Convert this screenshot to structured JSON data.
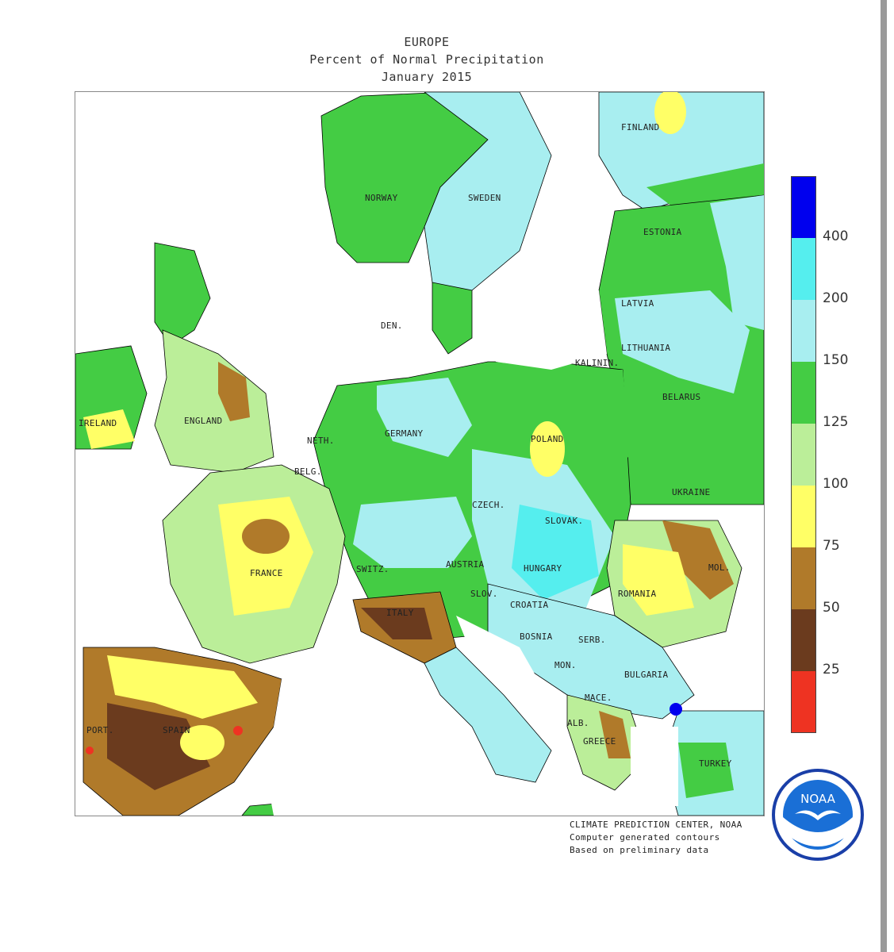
{
  "title": {
    "line1": "EUROPE",
    "line2": "Percent of Normal Precipitation",
    "line3": "January 2015"
  },
  "labels": {
    "finland": "FINLAND",
    "norway": "NORWAY",
    "sweden": "SWEDEN",
    "estonia": "ESTONIA",
    "latvia": "LATVIA",
    "lithuania": "LITHUANIA",
    "kalinin": "KALININ.",
    "belarus": "BELARUS",
    "den": "DEN.",
    "ireland": "IRELAND",
    "england": "ENGLAND",
    "neth": "NETH.",
    "germany": "GERMANY",
    "poland": "POLAND",
    "belg": "BELG.",
    "ukraine": "UKRAINE",
    "czech": "CZECH.",
    "slovak": "SLOVAK.",
    "france": "FRANCE",
    "switz": "SWITZ.",
    "austria": "AUSTRIA",
    "hungary": "HUNGARY",
    "mol": "MOL.",
    "romania": "ROMANIA",
    "slov": "SLOV.",
    "croatia": "CROATIA",
    "italy": "ITALY",
    "bosnia": "BOSNIA",
    "serb": "SERB.",
    "mon": "MON.",
    "bulgaria": "BULGARIA",
    "mace": "MACE.",
    "port": "PORT.",
    "spain": "SPAIN",
    "alb": "ALB.",
    "greece": "GREECE",
    "turkey": "TURKEY"
  },
  "legend": {
    "ticks": [
      "400",
      "200",
      "150",
      "125",
      "100",
      "75",
      "50",
      "25"
    ],
    "colors": {
      "over400": "#0000ee",
      "200-400": "#55eeee",
      "150-200": "#a8eef0",
      "125-150": "#44cc44",
      "100-125": "#bbee99",
      "75-100": "#ffff66",
      "50-75": "#b07a2a",
      "25-50": "#6b3b1e",
      "under25": "#ee3322"
    }
  },
  "credits": {
    "line1": "CLIMATE PREDICTION CENTER, NOAA",
    "line2": "Computer generated contours",
    "line3": "Based on preliminary data"
  },
  "logo": {
    "text": "NOAA",
    "icon": "noaa-seagull-logo"
  }
}
